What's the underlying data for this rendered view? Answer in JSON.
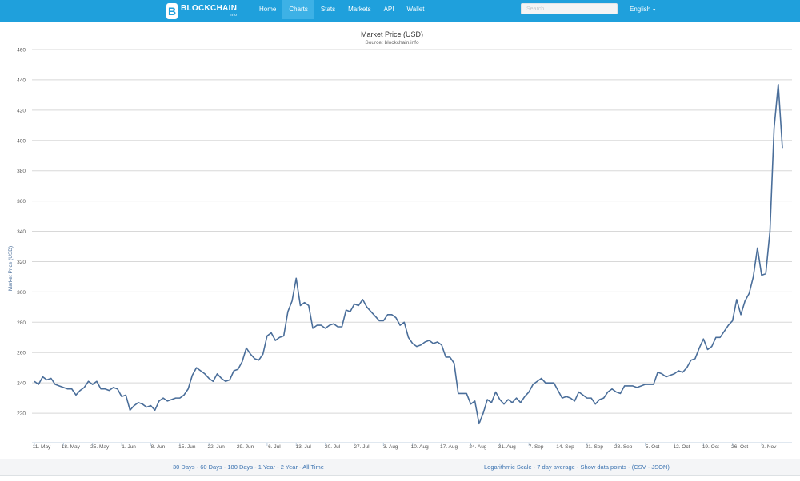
{
  "navbar": {
    "logo_text": "BLOCKCHAIN",
    "logo_sub": "info",
    "items": [
      {
        "label": "Home",
        "active": false
      },
      {
        "label": "Charts",
        "active": true
      },
      {
        "label": "Stats",
        "active": false
      },
      {
        "label": "Markets",
        "active": false
      },
      {
        "label": "API",
        "active": false
      },
      {
        "label": "Wallet",
        "active": false
      }
    ],
    "search_placeholder": "Search",
    "language": "English"
  },
  "chart_data": {
    "type": "line",
    "title": "Market Price (USD)",
    "subtitle": "Source: blockchain.info",
    "ylabel": "Market Price (USD)",
    "ylim": [
      200,
      460
    ],
    "yticks": [
      220,
      240,
      260,
      280,
      300,
      320,
      340,
      360,
      380,
      400,
      420,
      440,
      460
    ],
    "grid": true,
    "start_date": "2015-05-11",
    "xtick_labels": [
      "11. May",
      "18. May",
      "25. May",
      "1. Jun",
      "8. Jun",
      "15. Jun",
      "22. Jun",
      "29. Jun",
      "6. Jul",
      "13. Jul",
      "20. Jul",
      "27. Jul",
      "3. Aug",
      "10. Aug",
      "17. Aug",
      "24. Aug",
      "31. Aug",
      "7. Sep",
      "14. Sep",
      "21. Sep",
      "28. Sep",
      "5. Oct",
      "12. Oct",
      "19. Oct",
      "26. Oct",
      "2. Nov"
    ],
    "series": [
      {
        "name": "Market Price (USD)",
        "color": "#4a6e9a",
        "values": [
          241,
          239,
          244,
          242,
          243,
          239,
          238,
          237,
          236,
          236,
          232,
          235,
          237,
          241,
          239,
          241,
          236,
          236,
          235,
          237,
          236,
          231,
          232,
          222,
          225,
          227,
          226,
          224,
          225,
          222,
          228,
          230,
          228,
          229,
          230,
          230,
          232,
          236,
          245,
          250,
          248,
          246,
          243,
          241,
          246,
          243,
          241,
          242,
          248,
          249,
          254,
          263,
          259,
          256,
          255,
          259,
          271,
          273,
          268,
          270,
          271,
          287,
          294,
          309,
          291,
          293,
          291,
          276,
          278,
          278,
          276,
          278,
          279,
          277,
          277,
          288,
          287,
          292,
          291,
          295,
          290,
          287,
          284,
          281,
          281,
          285,
          285,
          283,
          278,
          280,
          270,
          266,
          264,
          265,
          267,
          268,
          266,
          267,
          265,
          257,
          257,
          253,
          233,
          233,
          233,
          226,
          228,
          213,
          220,
          229,
          227,
          234,
          229,
          226,
          229,
          227,
          230,
          227,
          231,
          234,
          239,
          241,
          243,
          240,
          240,
          240,
          235,
          230,
          231,
          230,
          228,
          234,
          232,
          230,
          230,
          226,
          229,
          230,
          234,
          236,
          234,
          233,
          238,
          238,
          238,
          237,
          238,
          239,
          239,
          239,
          247,
          246,
          244,
          245,
          246,
          248,
          247,
          250,
          255,
          256,
          263,
          269,
          262,
          264,
          270,
          270,
          274,
          278,
          281,
          295,
          285,
          294,
          299,
          310,
          329,
          311,
          312,
          340,
          408,
          437,
          395
        ]
      }
    ]
  },
  "footer": {
    "left_links": [
      "30 Days",
      "60 Days",
      "180 Days",
      "1 Year",
      "2 Year",
      "All Time"
    ],
    "right_links": [
      "Logarithmic Scale",
      "7 day average",
      "Show data points",
      "(CSV",
      "JSON)"
    ]
  }
}
